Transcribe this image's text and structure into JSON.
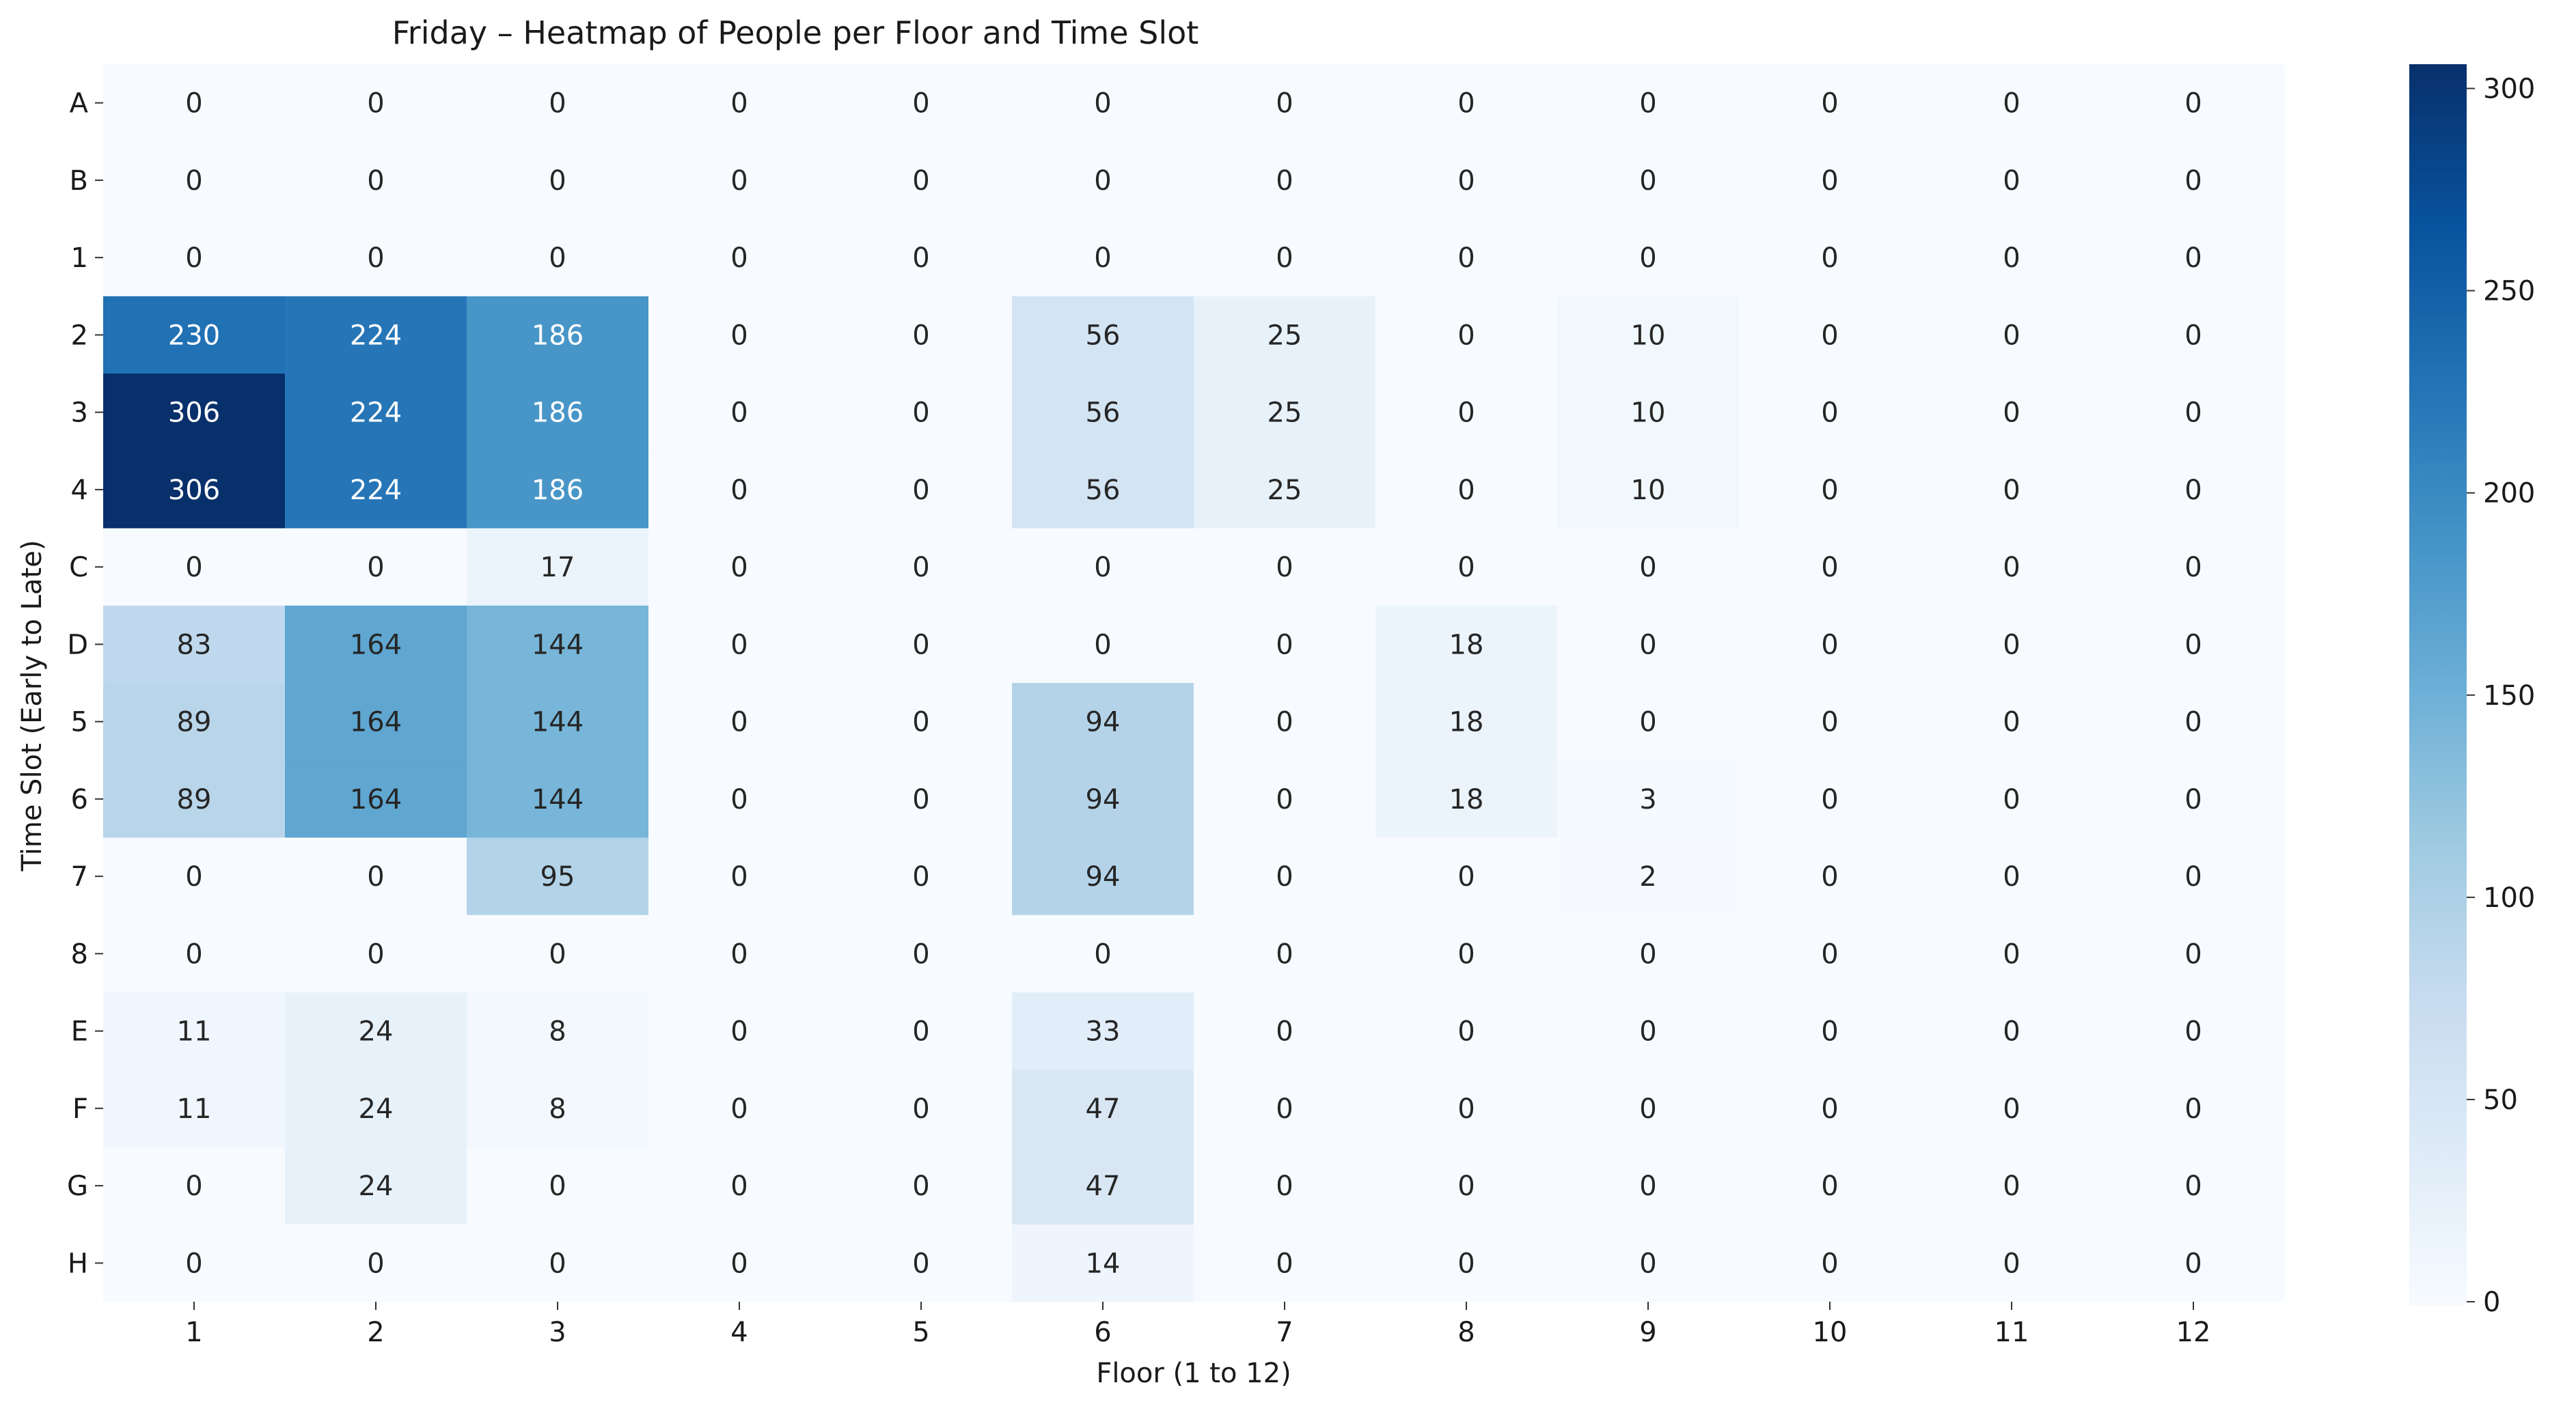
{
  "chart_data": {
    "type": "heatmap",
    "title": "Friday – Heatmap of People per Floor and Time Slot",
    "xlabel": "Floor (1 to 12)",
    "ylabel": "Time Slot (Early to Late)",
    "x_categories": [
      "1",
      "2",
      "3",
      "4",
      "5",
      "6",
      "7",
      "8",
      "9",
      "10",
      "11",
      "12"
    ],
    "y_categories": [
      "A",
      "B",
      "1",
      "2",
      "3",
      "4",
      "C",
      "D",
      "5",
      "6",
      "7",
      "8",
      "E",
      "F",
      "G",
      "H"
    ],
    "values": [
      [
        0,
        0,
        0,
        0,
        0,
        0,
        0,
        0,
        0,
        0,
        0,
        0
      ],
      [
        0,
        0,
        0,
        0,
        0,
        0,
        0,
        0,
        0,
        0,
        0,
        0
      ],
      [
        0,
        0,
        0,
        0,
        0,
        0,
        0,
        0,
        0,
        0,
        0,
        0
      ],
      [
        230,
        224,
        186,
        0,
        0,
        56,
        25,
        0,
        10,
        0,
        0,
        0
      ],
      [
        306,
        224,
        186,
        0,
        0,
        56,
        25,
        0,
        10,
        0,
        0,
        0
      ],
      [
        306,
        224,
        186,
        0,
        0,
        56,
        25,
        0,
        10,
        0,
        0,
        0
      ],
      [
        0,
        0,
        17,
        0,
        0,
        0,
        0,
        0,
        0,
        0,
        0,
        0
      ],
      [
        83,
        164,
        144,
        0,
        0,
        0,
        0,
        18,
        0,
        0,
        0,
        0
      ],
      [
        89,
        164,
        144,
        0,
        0,
        94,
        0,
        18,
        0,
        0,
        0,
        0
      ],
      [
        89,
        164,
        144,
        0,
        0,
        94,
        0,
        18,
        3,
        0,
        0,
        0
      ],
      [
        0,
        0,
        95,
        0,
        0,
        94,
        0,
        0,
        2,
        0,
        0,
        0
      ],
      [
        0,
        0,
        0,
        0,
        0,
        0,
        0,
        0,
        0,
        0,
        0,
        0
      ],
      [
        11,
        24,
        8,
        0,
        0,
        33,
        0,
        0,
        0,
        0,
        0,
        0
      ],
      [
        11,
        24,
        8,
        0,
        0,
        47,
        0,
        0,
        0,
        0,
        0,
        0
      ],
      [
        0,
        24,
        0,
        0,
        0,
        47,
        0,
        0,
        0,
        0,
        0,
        0
      ],
      [
        0,
        0,
        0,
        0,
        0,
        14,
        0,
        0,
        0,
        0,
        0,
        0
      ]
    ],
    "colorbar": {
      "colormap": "Blues",
      "range": [
        0,
        306
      ],
      "ticks": [
        0,
        50,
        100,
        150,
        200,
        250,
        300
      ],
      "tick_labels": [
        "0",
        "50",
        "100",
        "150",
        "200",
        "250",
        "300"
      ]
    },
    "annotated": true,
    "grid": false
  }
}
